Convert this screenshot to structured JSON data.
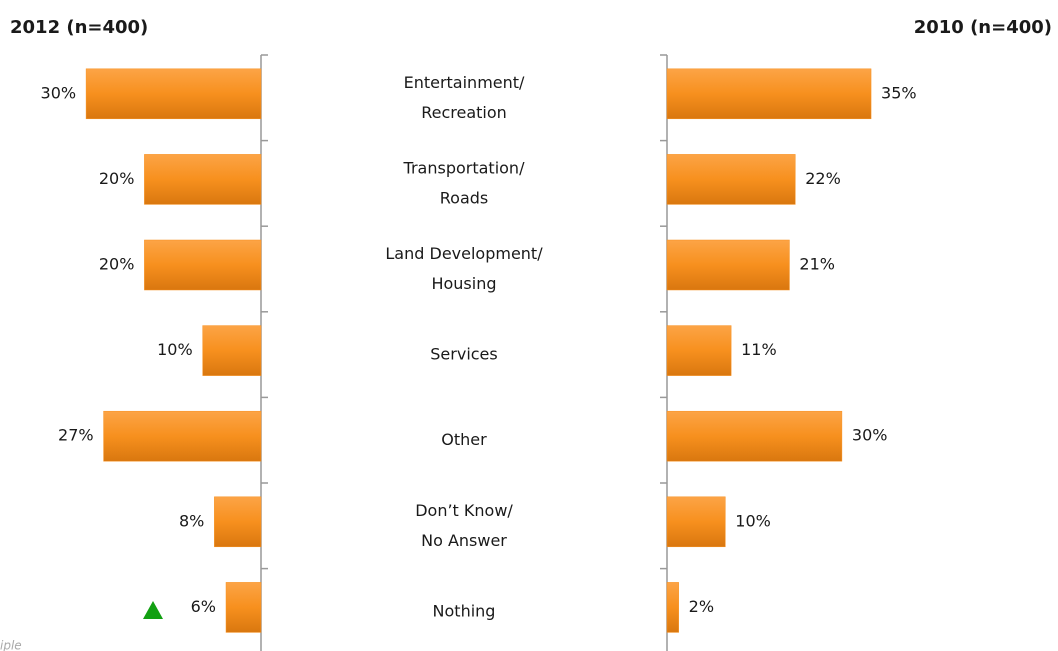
{
  "chart_data": {
    "type": "bar",
    "categories": [
      "Entertainment/\nRecreation",
      "Transportation/\nRoads",
      "Land Development/\nHousing",
      "Services",
      "Other",
      "Don’t Know/\nNo Answer",
      "Nothing"
    ],
    "series": [
      {
        "name": "2012 (n=400)",
        "color": "#f7901e",
        "values": [
          30,
          20,
          20,
          10,
          27,
          8,
          6
        ],
        "value_labels": [
          "30%",
          "20%",
          "20%",
          "10%",
          "27%",
          "8%",
          "6%"
        ]
      },
      {
        "name": "2010 (n=400)",
        "color": "#f7901e",
        "values": [
          35,
          22,
          21,
          11,
          30,
          10,
          2
        ],
        "value_labels": [
          "35%",
          "22%",
          "21%",
          "11%",
          "30%",
          "10%",
          "2%"
        ]
      }
    ],
    "footnote": "iple"
  }
}
